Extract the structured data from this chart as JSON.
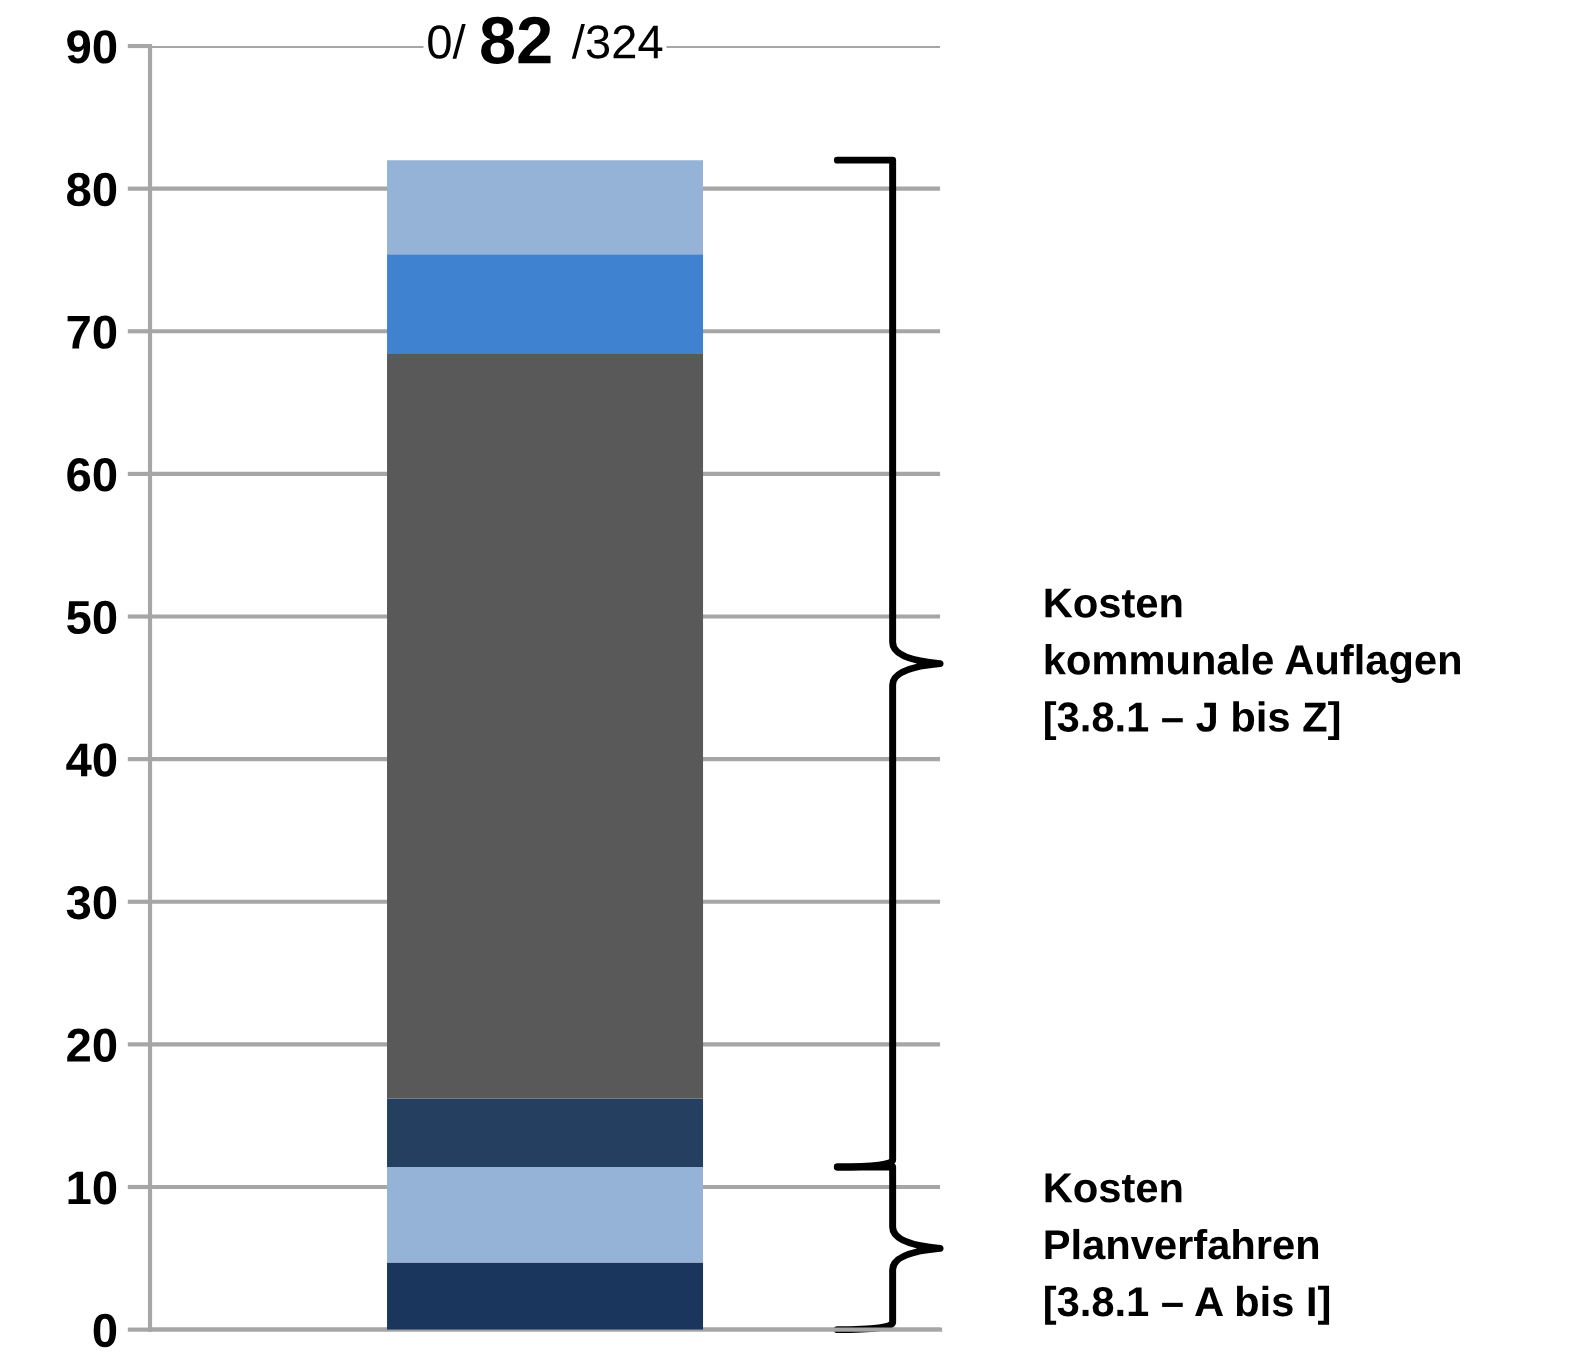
{
  "chart_data": {
    "type": "bar",
    "stacked": true,
    "categories": [
      null
    ],
    "series": [
      {
        "color": "#1b365d",
        "values": [
          4.7
        ]
      },
      {
        "color": "#95b3d7",
        "values": [
          6.7
        ]
      },
      {
        "color": "#243f60",
        "values": [
          4.8
        ]
      },
      {
        "color": "#595959",
        "values": [
          52.2
        ]
      },
      {
        "color": "#3f83d0",
        "values": [
          7.0
        ]
      },
      {
        "color": "#95b3d7",
        "values": [
          6.6
        ]
      }
    ],
    "ylim": [
      0,
      90
    ],
    "yticks": [
      0,
      10,
      20,
      30,
      40,
      50,
      60,
      70,
      80,
      90
    ],
    "grid": "y",
    "tick_labels": "y",
    "annotations": [
      "0/ 82 /324",
      "Kosten\nkommunale Auflagen\n[3.8.1 – J bis Z]",
      "Kosten\nPlanverfahren\n[3.8.1 – A bis I]"
    ]
  }
}
